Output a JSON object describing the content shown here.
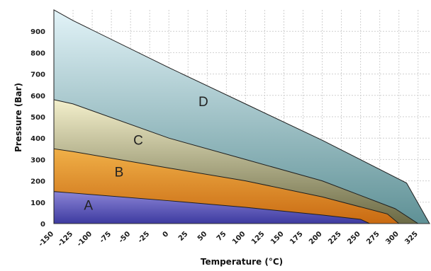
{
  "chart_data": {
    "type": "area",
    "title": "",
    "xlabel": "Temperature (°C)",
    "ylabel": "Pressure (Bar)",
    "xlim": [
      -150,
      340
    ],
    "ylim": [
      0,
      1000
    ],
    "x_ticks": [
      -150,
      -125,
      -100,
      -75,
      -50,
      -25,
      0,
      25,
      50,
      75,
      100,
      125,
      150,
      175,
      200,
      225,
      250,
      275,
      300,
      325
    ],
    "y_ticks": [
      0,
      100,
      200,
      300,
      400,
      500,
      600,
      700,
      800,
      900
    ],
    "grid": true,
    "series": [
      {
        "name": "A",
        "color_top": "#8b85d6",
        "color_bottom": "#3d3aa0",
        "points": [
          [
            -150,
            150
          ],
          [
            -125,
            143
          ],
          [
            0,
            107
          ],
          [
            100,
            76
          ],
          [
            200,
            40
          ],
          [
            250,
            20
          ],
          [
            262,
            0
          ]
        ]
      },
      {
        "name": "B",
        "color_top": "#f0b048",
        "color_bottom": "#c96a12",
        "points": [
          [
            -150,
            350
          ],
          [
            -125,
            337
          ],
          [
            0,
            260
          ],
          [
            100,
            200
          ],
          [
            200,
            125
          ],
          [
            285,
            45
          ],
          [
            300,
            0
          ]
        ]
      },
      {
        "name": "C",
        "color_top": "#f4f0cc",
        "color_bottom": "#6b6a45",
        "points": [
          [
            -150,
            580
          ],
          [
            -125,
            560
          ],
          [
            0,
            400
          ],
          [
            100,
            300
          ],
          [
            200,
            200
          ],
          [
            295,
            70
          ],
          [
            325,
            0
          ]
        ]
      },
      {
        "name": "D",
        "color_top": "#e2f3f8",
        "color_bottom": "#5f9196",
        "points": [
          [
            -150,
            1000
          ],
          [
            -125,
            950
          ],
          [
            0,
            730
          ],
          [
            100,
            560
          ],
          [
            200,
            390
          ],
          [
            310,
            190
          ],
          [
            340,
            0
          ]
        ]
      }
    ]
  }
}
